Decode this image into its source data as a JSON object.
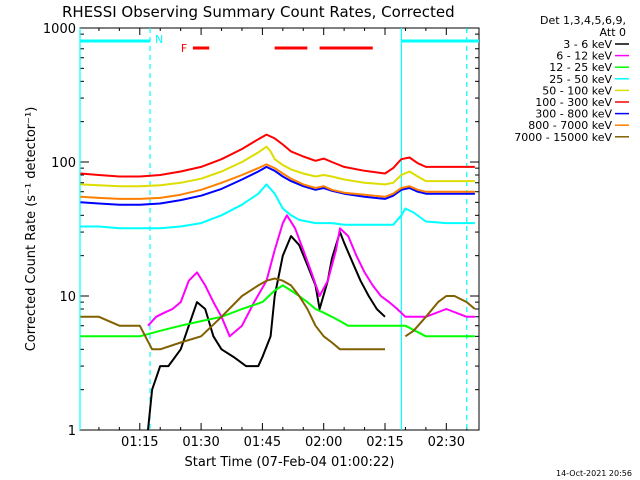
{
  "title": "RHESSI Observing Summary Count Rates, Corrected",
  "footer_timestamp": "14-Oct-2021 20:56",
  "chart_data": {
    "type": "line",
    "title": "RHESSI Observing Summary Count Rates, Corrected",
    "xlabel": "Start Time (07-Feb-04 01:00:22)",
    "ylabel": "Corrected Count Rate (s⁻¹ detector⁻¹)",
    "y_scale": "log",
    "ylim": [
      1,
      1000
    ],
    "xlim_minutes": [
      0.37,
      98
    ],
    "x_unit": "minutes after 01:00",
    "x_ticks": [
      {
        "minute": 15,
        "label": "01:15"
      },
      {
        "minute": 30,
        "label": "01:30"
      },
      {
        "minute": 45,
        "label": "01:45"
      },
      {
        "minute": 60,
        "label": "02:00"
      },
      {
        "minute": 75,
        "label": "02:15"
      },
      {
        "minute": 90,
        "label": "02:30"
      }
    ],
    "y_ticks": [
      {
        "value": 1,
        "label": "1"
      },
      {
        "value": 10,
        "label": "10"
      },
      {
        "value": 100,
        "label": "100"
      },
      {
        "value": 1000,
        "label": "1000"
      }
    ],
    "legend_header": [
      "Det 1,3,4,5,6,9,",
      "Att 0"
    ],
    "series": [
      {
        "name": "3 - 6 keV",
        "color": "#000000",
        "x": [
          0.5,
          15,
          17,
          18,
          20,
          22,
          25,
          27,
          29,
          31,
          33,
          35,
          38,
          41,
          44,
          45,
          47,
          48,
          50,
          52,
          54,
          56,
          58,
          59,
          61,
          62,
          64,
          65,
          67,
          69,
          71,
          73,
          75,
          77
        ],
        "y": [
          null,
          null,
          1,
          2,
          3,
          3,
          4,
          6,
          9,
          8,
          5,
          4,
          3.5,
          3,
          3,
          3.5,
          5,
          10,
          20,
          28,
          24,
          17,
          12,
          8,
          13,
          19,
          30,
          25,
          18,
          13,
          10,
          8,
          7,
          null
        ]
      },
      {
        "name": "6 - 12 keV",
        "color": "#ff00ff",
        "x": [
          17,
          19,
          21,
          23,
          25,
          27,
          29,
          31,
          33,
          35,
          37,
          40,
          43,
          46,
          48,
          50,
          51,
          53,
          55,
          57,
          59,
          61,
          63,
          64,
          66,
          68,
          70,
          72,
          74,
          76,
          78,
          80,
          85,
          90,
          95,
          97
        ],
        "y": [
          6,
          7,
          7.5,
          8,
          9,
          13,
          15,
          12,
          9,
          7,
          5,
          6,
          9,
          13,
          22,
          35,
          40,
          32,
          22,
          15,
          10,
          13,
          22,
          32,
          28,
          20,
          15,
          12,
          10,
          9,
          8,
          7,
          7,
          8,
          7,
          7
        ]
      },
      {
        "name": "12 - 25 keV",
        "color": "#00ff00",
        "x": [
          0.5,
          5,
          10,
          15,
          20,
          25,
          30,
          35,
          40,
          45,
          48,
          50,
          52,
          54,
          56,
          58,
          60,
          62,
          64,
          66,
          70,
          75,
          80,
          85,
          90,
          95,
          97
        ],
        "y": [
          5,
          5,
          5,
          5,
          5.5,
          6,
          6.5,
          7,
          8,
          9,
          11,
          12,
          11,
          10,
          9,
          8,
          7.5,
          7,
          6.5,
          6,
          6,
          6,
          6,
          5,
          5,
          5,
          5
        ]
      },
      {
        "name": "25 - 50 keV",
        "color": "#00ffff",
        "x": [
          0.5,
          5,
          10,
          15,
          20,
          25,
          30,
          35,
          40,
          44,
          46,
          48,
          50,
          52,
          54,
          56,
          58,
          60,
          62,
          65,
          70,
          75,
          77,
          79,
          80,
          82,
          85,
          90,
          95,
          97
        ],
        "y": [
          33,
          33,
          32,
          32,
          32,
          33,
          35,
          40,
          48,
          58,
          68,
          58,
          45,
          40,
          37,
          36,
          35,
          35,
          35,
          34,
          34,
          34,
          34,
          40,
          45,
          42,
          36,
          35,
          35,
          35
        ]
      },
      {
        "name": "50 - 100 keV",
        "color": "#dddd00",
        "x": [
          0.5,
          5,
          10,
          15,
          20,
          25,
          30,
          35,
          40,
          44,
          46,
          47,
          48,
          50,
          52,
          55,
          58,
          60,
          62,
          65,
          70,
          75,
          77,
          79,
          81,
          83,
          85,
          90,
          95,
          97
        ],
        "y": [
          68,
          67,
          66,
          66,
          67,
          70,
          75,
          85,
          100,
          118,
          130,
          120,
          105,
          95,
          88,
          82,
          78,
          80,
          78,
          74,
          70,
          68,
          70,
          80,
          85,
          78,
          72,
          72,
          72,
          72
        ]
      },
      {
        "name": "100 - 300 keV",
        "color": "#ff0000",
        "x": [
          0.5,
          5,
          10,
          15,
          20,
          25,
          30,
          35,
          40,
          44,
          46,
          48,
          50,
          52,
          55,
          58,
          60,
          62,
          65,
          70,
          75,
          77,
          79,
          81,
          83,
          85,
          90,
          95,
          97
        ],
        "y": [
          82,
          80,
          78,
          78,
          80,
          85,
          92,
          105,
          125,
          148,
          160,
          150,
          135,
          120,
          110,
          102,
          106,
          100,
          92,
          86,
          82,
          90,
          105,
          108,
          98,
          92,
          92,
          92,
          92
        ]
      },
      {
        "name": "300 - 800 keV",
        "color": "#0000ff",
        "x": [
          0.5,
          5,
          10,
          15,
          20,
          25,
          30,
          35,
          40,
          44,
          46,
          48,
          50,
          52,
          55,
          58,
          60,
          62,
          65,
          70,
          75,
          77,
          79,
          81,
          83,
          85,
          90,
          95,
          97
        ],
        "y": [
          50,
          49,
          48,
          48,
          49,
          52,
          56,
          63,
          74,
          85,
          92,
          86,
          78,
          72,
          66,
          62,
          64,
          61,
          58,
          55,
          53,
          56,
          62,
          64,
          60,
          58,
          58,
          58,
          58
        ]
      },
      {
        "name": "800 - 7000 keV",
        "color": "#ff8000",
        "x": [
          0.5,
          5,
          10,
          15,
          20,
          25,
          30,
          35,
          40,
          44,
          46,
          48,
          50,
          52,
          55,
          58,
          60,
          62,
          65,
          70,
          75,
          77,
          79,
          81,
          83,
          85,
          90,
          95,
          97
        ],
        "y": [
          55,
          54,
          53,
          53,
          54,
          57,
          62,
          70,
          80,
          90,
          96,
          90,
          82,
          75,
          68,
          64,
          66,
          62,
          59,
          57,
          55,
          58,
          64,
          66,
          62,
          60,
          60,
          60,
          60
        ]
      },
      {
        "name": "7000 - 15000 keV",
        "color": "#806000",
        "x": [
          0.5,
          5,
          10,
          15,
          18,
          20,
          25,
          30,
          35,
          40,
          44,
          46,
          48,
          50,
          52,
          54,
          56,
          58,
          60,
          62,
          64,
          66,
          70,
          75,
          77,
          79,
          80,
          82,
          85,
          88,
          90,
          92,
          95,
          97
        ],
        "y": [
          7,
          7,
          6,
          6,
          4,
          4,
          4.5,
          5,
          7,
          10,
          12,
          13,
          13.5,
          13,
          12,
          10,
          8,
          6,
          5,
          4.5,
          4,
          4,
          4,
          4,
          null,
          null,
          5,
          5.5,
          7,
          9,
          10,
          10,
          9,
          8
        ]
      }
    ],
    "annotations": {
      "night_bars": [
        {
          "label": "N",
          "start": 0.37,
          "end": 17.5,
          "color": "#00ffff"
        },
        {
          "label": "",
          "start": 79,
          "end": 98,
          "color": "#00ffff"
        }
      ],
      "flare_bars": [
        {
          "label": "F",
          "start": 28,
          "end": 32,
          "color": "#ff0000"
        },
        {
          "label": "",
          "start": 48,
          "end": 56,
          "color": "#ff0000"
        },
        {
          "label": "",
          "start": 59,
          "end": 72,
          "color": "#ff0000"
        }
      ],
      "dashed_lines_minutes": [
        17.5,
        95
      ],
      "solid_lines_minutes": [
        0.37,
        79
      ]
    }
  }
}
